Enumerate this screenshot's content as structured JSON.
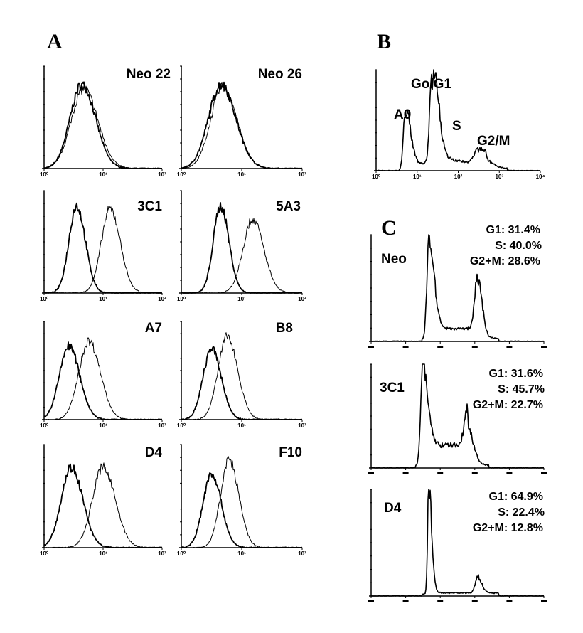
{
  "chart_data": {
    "panel_A": {
      "letter": "A",
      "type": "histogram-overlay",
      "x_scale": "log",
      "x_range_decades": [
        0,
        2
      ],
      "x_tick_labels": [
        "10⁰",
        "10¹",
        "10²"
      ],
      "samples": [
        {
          "name": "Neo 22",
          "peaks": [
            {
              "center": 0.64,
              "height": 0.82,
              "width": 0.2
            },
            {
              "center": 0.67,
              "height": 0.78,
              "width": 0.21
            }
          ]
        },
        {
          "name": "Neo 26",
          "peaks": [
            {
              "center": 0.66,
              "height": 0.82,
              "width": 0.21
            },
            {
              "center": 0.69,
              "height": 0.8,
              "width": 0.2
            }
          ]
        },
        {
          "name": "3C1",
          "peaks": [
            {
              "center": 0.55,
              "height": 0.85,
              "width": 0.13
            },
            {
              "center": 1.12,
              "height": 0.82,
              "width": 0.15
            }
          ]
        },
        {
          "name": "5A3",
          "peaks": [
            {
              "center": 0.65,
              "height": 0.85,
              "width": 0.12
            },
            {
              "center": 1.18,
              "height": 0.72,
              "width": 0.16
            }
          ]
        },
        {
          "name": "A7",
          "peaks": [
            {
              "center": 0.42,
              "height": 0.75,
              "width": 0.16
            },
            {
              "center": 0.76,
              "height": 0.8,
              "width": 0.17
            }
          ]
        },
        {
          "name": "B8",
          "peaks": [
            {
              "center": 0.5,
              "height": 0.72,
              "width": 0.14
            },
            {
              "center": 0.76,
              "height": 0.85,
              "width": 0.15
            }
          ]
        },
        {
          "name": "D4",
          "peaks": [
            {
              "center": 0.46,
              "height": 0.78,
              "width": 0.17
            },
            {
              "center": 1.0,
              "height": 0.78,
              "width": 0.18
            }
          ]
        },
        {
          "name": "F10",
          "peaks": [
            {
              "center": 0.5,
              "height": 0.72,
              "width": 0.14
            },
            {
              "center": 0.79,
              "height": 0.85,
              "width": 0.14
            }
          ]
        }
      ]
    },
    "panel_B": {
      "letter": "B",
      "type": "histogram",
      "x_scale": "log",
      "x_range_decades": [
        0,
        4
      ],
      "x_tick_labels": [
        "10⁰",
        "10¹",
        "10²",
        "10³",
        "10⁴"
      ],
      "peaks": [
        {
          "label": "A0",
          "center": 0.71,
          "height": 0.55,
          "width": 0.05
        },
        {
          "label": "Go/G1",
          "center": 1.37,
          "height": 0.92,
          "width": 0.06
        },
        {
          "label": "G2/M",
          "center": 2.48,
          "height": 0.14,
          "width": 0.1
        }
      ],
      "region_labels": {
        "a0": "A0",
        "g0g1": "Go/G1",
        "s": "S",
        "g2m": "G2/M"
      }
    },
    "panel_C": {
      "letter": "C",
      "type": "histogram",
      "x_scale": "linear",
      "x_range": [
        0,
        1000
      ],
      "samples": [
        {
          "name": "Neo",
          "g1": "G1: 31.4%",
          "s": "S:  40.0%",
          "g2m": "G2+M: 28.6%",
          "g1_peak": {
            "center": 333,
            "height": 0.85,
            "width": 14
          },
          "g2_peak": {
            "center": 617,
            "height": 0.55,
            "width": 16
          },
          "s_level": 0.12
        },
        {
          "name": "3C1",
          "g1": "G1: 31.6%",
          "s": "S:  45.7%",
          "g2m": "G2+M: 22.7%",
          "g1_peak": {
            "center": 296,
            "height": 0.8,
            "width": 14
          },
          "g2_peak": {
            "center": 560,
            "height": 0.35,
            "width": 20
          },
          "s_level": 0.22
        },
        {
          "name": "D4",
          "g1": "G1: 64.9%",
          "s": "S:  22.4%",
          "g2m": "G2+M: 12.8%",
          "g1_peak": {
            "center": 333,
            "height": 1.0,
            "width": 8
          },
          "g2_peak": {
            "center": 617,
            "height": 0.15,
            "width": 14
          },
          "s_level": 0.03
        }
      ]
    }
  }
}
